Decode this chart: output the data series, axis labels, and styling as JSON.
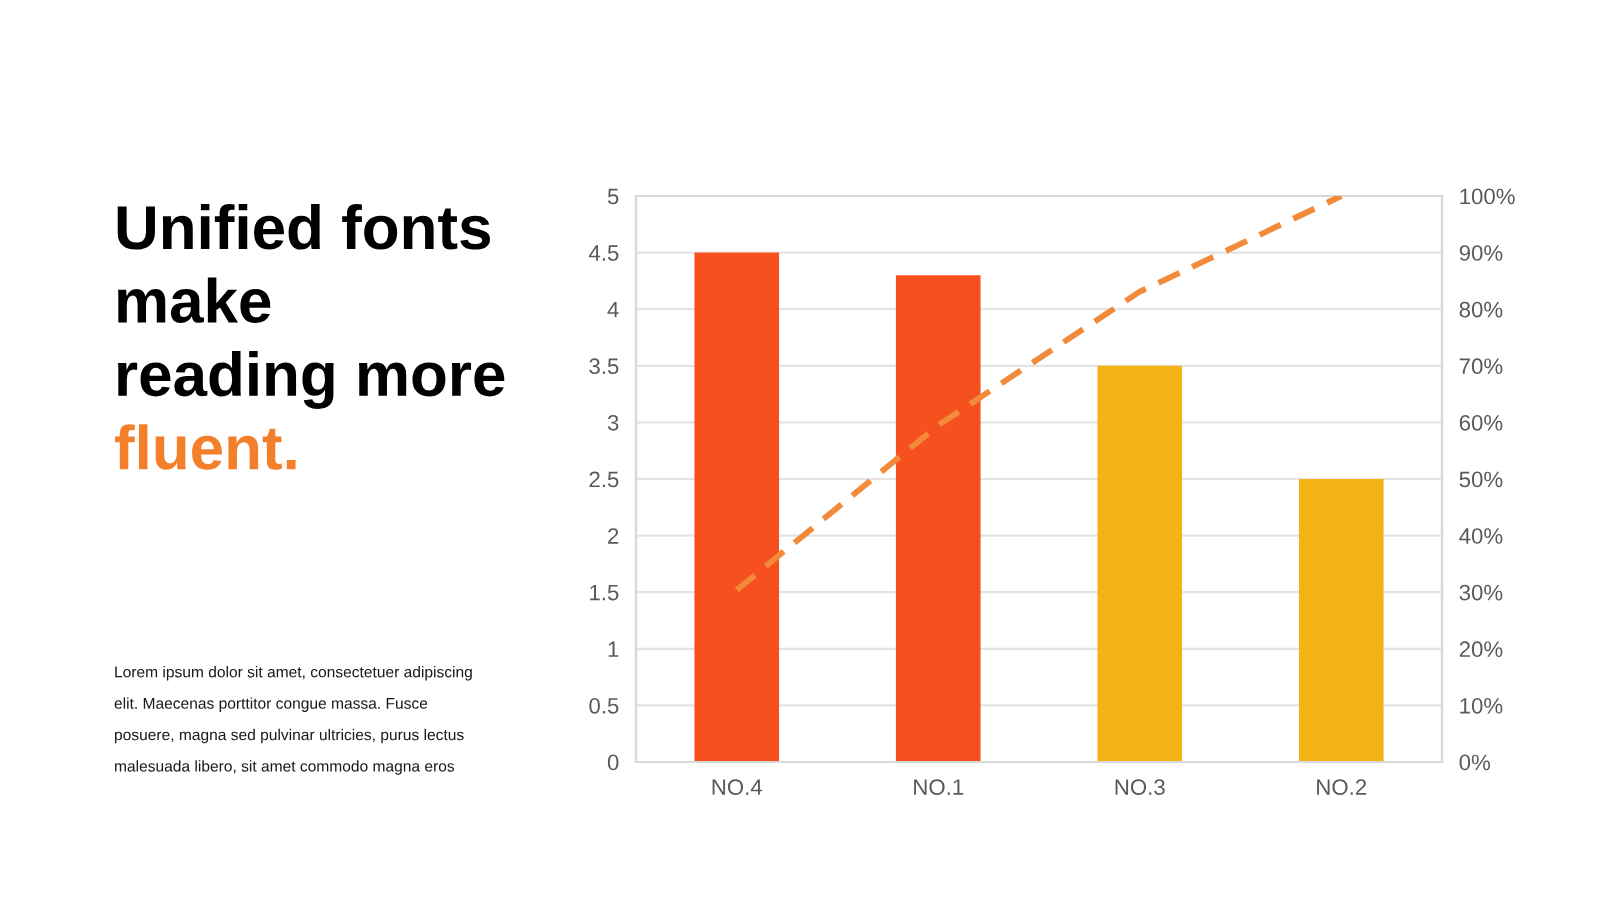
{
  "chart_data": {
    "type": "bar",
    "title": "Unified fonts\nmake\nreading more\nfluent.",
    "annotations": [
      "Lorem ipsum dolor sit amet, consectetuer adipiscing\nelit. Maecenas porttitor congue massa. Fusce\nposuere, magna sed pulvinar ultricies, purus lectus\nmalesuada libero, sit amet commodo magna eros"
    ],
    "categories": [
      "NO.4",
      "NO.1",
      "NO.3",
      "NO.2"
    ],
    "series": [
      {
        "colors": [
          "#f5501d",
          "#f5501d",
          "#f2b317",
          "#f2b317"
        ],
        "values": [
          4.5,
          4.3,
          3.5,
          2.5
        ]
      },
      {
        "type": "line",
        "axis": "y2",
        "color": "#f28a3a",
        "line_style": "dashed",
        "values": [
          30.4,
          59.5,
          83.1,
          100
        ]
      }
    ],
    "ylim": [
      0,
      5
    ],
    "yticks": [
      0,
      0.5,
      1,
      1.5,
      2,
      2.5,
      3,
      3.5,
      4,
      4.5,
      5
    ],
    "y2lim": [
      0,
      100
    ],
    "y2ticks": [
      {
        "value": 0,
        "label": "0%"
      },
      {
        "value": 10,
        "label": "10%"
      },
      {
        "value": 20,
        "label": "20%"
      },
      {
        "value": 30,
        "label": "30%"
      },
      {
        "value": 40,
        "label": "40%"
      },
      {
        "value": 50,
        "label": "50%"
      },
      {
        "value": 60,
        "label": "60%"
      },
      {
        "value": 70,
        "label": "70%"
      },
      {
        "value": 80,
        "label": "80%"
      },
      {
        "value": 90,
        "label": "90%"
      },
      {
        "value": 100,
        "label": "100%"
      }
    ],
    "grid": "y"
  }
}
